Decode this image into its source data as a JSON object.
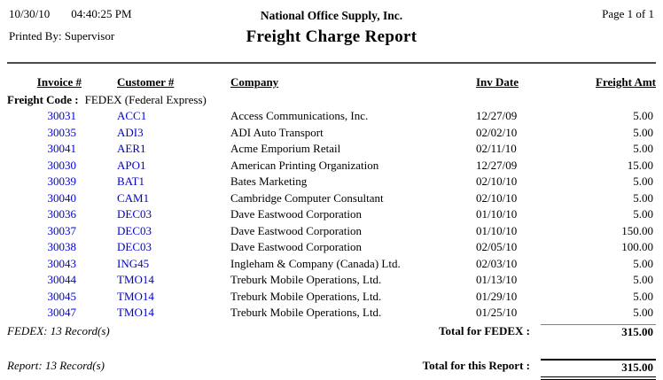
{
  "page": {
    "date": "10/30/10",
    "time": "04:40:25 PM",
    "printed_by": "Printed By: Supervisor",
    "company": "National Office Supply, Inc.",
    "title": "Freight Charge Report",
    "page_label": "Page 1 of  1"
  },
  "table": {
    "columns": [
      "Invoice #",
      "Customer #",
      "Company",
      "Inv Date",
      "Freight Amt"
    ],
    "group": {
      "label": "Freight Code :",
      "value": "FEDEX (Federal Express)"
    },
    "rows": [
      {
        "invoice": "30031",
        "customer": "ACC1",
        "company": "Access Communications, Inc.",
        "inv_date": "12/27/09",
        "amount": "5.00"
      },
      {
        "invoice": "30035",
        "customer": "ADI3",
        "company": "ADI Auto Transport",
        "inv_date": "02/02/10",
        "amount": "5.00"
      },
      {
        "invoice": "30041",
        "customer": "AER1",
        "company": "Acme Emporium Retail",
        "inv_date": "02/11/10",
        "amount": "5.00"
      },
      {
        "invoice": "30030",
        "customer": "APO1",
        "company": "American Printing Organization",
        "inv_date": "12/27/09",
        "amount": "15.00"
      },
      {
        "invoice": "30039",
        "customer": "BAT1",
        "company": "Bates Marketing",
        "inv_date": "02/10/10",
        "amount": "5.00"
      },
      {
        "invoice": "30040",
        "customer": "CAM1",
        "company": "Cambridge Computer Consultant",
        "inv_date": "02/10/10",
        "amount": "5.00"
      },
      {
        "invoice": "30036",
        "customer": "DEC03",
        "company": "Dave Eastwood Corporation",
        "inv_date": "01/10/10",
        "amount": "5.00"
      },
      {
        "invoice": "30037",
        "customer": "DEC03",
        "company": "Dave Eastwood Corporation",
        "inv_date": "01/10/10",
        "amount": "150.00"
      },
      {
        "invoice": "30038",
        "customer": "DEC03",
        "company": "Dave Eastwood Corporation",
        "inv_date": "02/05/10",
        "amount": "100.00"
      },
      {
        "invoice": "30043",
        "customer": "ING45",
        "company": "Ingleham & Company (Canada) Ltd.",
        "inv_date": "02/03/10",
        "amount": "5.00"
      },
      {
        "invoice": "30044",
        "customer": "TMO14",
        "company": "Treburk Mobile Operations, Ltd.",
        "inv_date": "01/13/10",
        "amount": "5.00"
      },
      {
        "invoice": "30045",
        "customer": "TMO14",
        "company": "Treburk Mobile Operations, Ltd.",
        "inv_date": "01/29/10",
        "amount": "5.00"
      },
      {
        "invoice": "30047",
        "customer": "TMO14",
        "company": "Treburk Mobile Operations, Ltd.",
        "inv_date": "01/25/10",
        "amount": "5.00"
      }
    ],
    "group_footer": {
      "record_count": "FEDEX: 13 Record(s)",
      "total_label": "Total for FEDEX :",
      "total_amount": "315.00"
    },
    "report_footer": {
      "record_count": "Report: 13 Record(s)",
      "total_label": "Total for this Report :",
      "total_amount": "315.00"
    }
  },
  "colors": {
    "link_blue": "#0000CC",
    "text": "#000000",
    "rule_dark": "#4a4a4a",
    "rule_gray": "#808080",
    "background": "#ffffff"
  }
}
